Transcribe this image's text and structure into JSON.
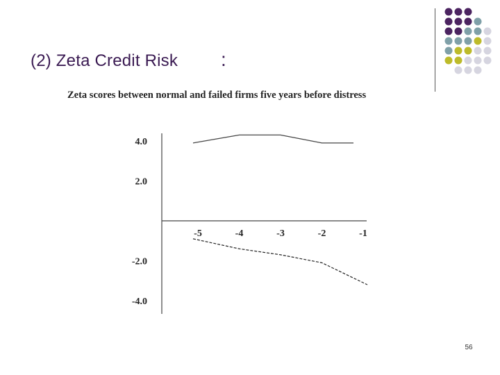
{
  "slide": {
    "title": "(2)  Zeta Credit Risk",
    "title_colon": ":",
    "page_number": "56"
  },
  "decor": {
    "dot_colors": [
      "#4b2360",
      "#7fa0a8",
      "#bdbb2a",
      "#d6d5e0"
    ]
  },
  "chart_data": {
    "type": "line",
    "title": "Zeta scores between normal and failed firms five years before distress",
    "xlabel": "",
    "ylabel": "",
    "x": [
      -5,
      -4,
      -3,
      -2,
      -1
    ],
    "xtick_labels": [
      "-5",
      "-4",
      "-3",
      "-2",
      "-1"
    ],
    "ytick_values": [
      4.0,
      2.0,
      -2.0,
      -4.0
    ],
    "ytick_labels": [
      "4.0",
      "2.0",
      "-2.0",
      "-4.0"
    ],
    "ylim": [
      -4.0,
      4.4
    ],
    "grid": false,
    "series": [
      {
        "values": [
          3.9,
          4.3,
          4.3,
          3.9,
          3.9
        ],
        "style": "solid",
        "color": "#444444"
      },
      {
        "values": [
          -0.9,
          -1.4,
          -1.7,
          -2.1,
          -3.2
        ],
        "style": "dashed",
        "color": "#222222"
      }
    ]
  }
}
